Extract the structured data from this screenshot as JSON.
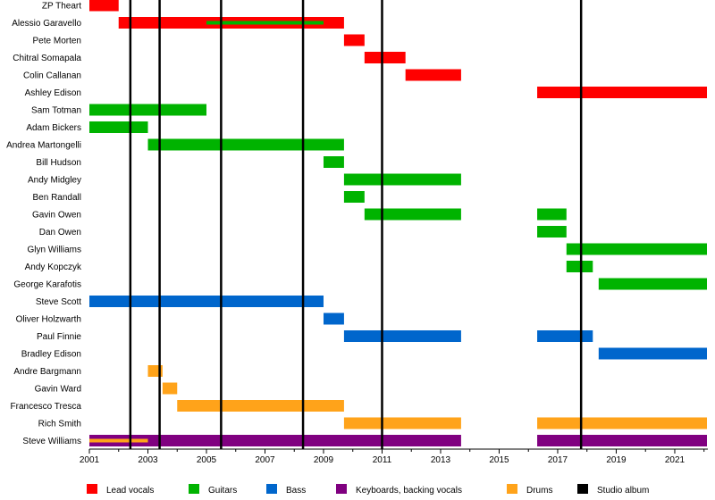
{
  "chart_data": {
    "type": "timeline",
    "x_range": [
      2001.0,
      2022.1
    ],
    "x_ticks": [
      2001,
      2003,
      2005,
      2007,
      2009,
      2011,
      2013,
      2015,
      2017,
      2019,
      2021
    ],
    "colors": {
      "lead_vocals": "#ff0000",
      "guitars": "#00b300",
      "bass": "#0066cc",
      "keyboards": "#800080",
      "drums": "#ffa31a",
      "studio_album": "#000000"
    },
    "members": [
      {
        "name": "ZP Theart",
        "bars": [
          {
            "role": "lead_vocals",
            "start": 2001.0,
            "end": 2002.0
          }
        ]
      },
      {
        "name": "Alessio Garavello",
        "bars": [
          {
            "role": "lead_vocals",
            "start": 2002.0,
            "end": 2009.7
          },
          {
            "role": "guitars",
            "start": 2005.0,
            "end": 2009.0,
            "thin": true
          }
        ]
      },
      {
        "name": "Pete Morten",
        "bars": [
          {
            "role": "lead_vocals",
            "start": 2009.7,
            "end": 2010.4
          }
        ]
      },
      {
        "name": "Chitral Somapala",
        "bars": [
          {
            "role": "lead_vocals",
            "start": 2010.4,
            "end": 2011.8
          }
        ]
      },
      {
        "name": "Colin Callanan",
        "bars": [
          {
            "role": "lead_vocals",
            "start": 2011.8,
            "end": 2013.7
          }
        ]
      },
      {
        "name": "Ashley Edison",
        "bars": [
          {
            "role": "lead_vocals",
            "start": 2016.3,
            "end": 2022.1
          }
        ]
      },
      {
        "name": "Sam Totman",
        "bars": [
          {
            "role": "guitars",
            "start": 2001.0,
            "end": 2005.0
          }
        ]
      },
      {
        "name": "Adam Bickers",
        "bars": [
          {
            "role": "guitars",
            "start": 2001.0,
            "end": 2003.0
          }
        ]
      },
      {
        "name": "Andrea Martongelli",
        "bars": [
          {
            "role": "guitars",
            "start": 2003.0,
            "end": 2009.7
          }
        ]
      },
      {
        "name": "Bill Hudson",
        "bars": [
          {
            "role": "guitars",
            "start": 2009.0,
            "end": 2009.7
          }
        ]
      },
      {
        "name": "Andy Midgley",
        "bars": [
          {
            "role": "guitars",
            "start": 2009.7,
            "end": 2013.7
          }
        ]
      },
      {
        "name": "Ben Randall",
        "bars": [
          {
            "role": "guitars",
            "start": 2009.7,
            "end": 2010.4
          }
        ]
      },
      {
        "name": "Gavin Owen",
        "bars": [
          {
            "role": "guitars",
            "start": 2010.4,
            "end": 2013.7
          },
          {
            "role": "guitars",
            "start": 2016.3,
            "end": 2017.3
          }
        ]
      },
      {
        "name": "Dan Owen",
        "bars": [
          {
            "role": "guitars",
            "start": 2016.3,
            "end": 2017.3
          }
        ]
      },
      {
        "name": "Glyn Williams",
        "bars": [
          {
            "role": "guitars",
            "start": 2017.3,
            "end": 2022.1
          }
        ]
      },
      {
        "name": "Andy Kopczyk",
        "bars": [
          {
            "role": "guitars",
            "start": 2017.3,
            "end": 2018.2
          }
        ]
      },
      {
        "name": "George Karafotis",
        "bars": [
          {
            "role": "guitars",
            "start": 2018.4,
            "end": 2022.1
          }
        ]
      },
      {
        "name": "Steve Scott",
        "bars": [
          {
            "role": "bass",
            "start": 2001.0,
            "end": 2009.0
          }
        ]
      },
      {
        "name": "Oliver Holzwarth",
        "bars": [
          {
            "role": "bass",
            "start": 2009.0,
            "end": 2009.7
          }
        ]
      },
      {
        "name": "Paul Finnie",
        "bars": [
          {
            "role": "bass",
            "start": 2009.7,
            "end": 2013.7
          },
          {
            "role": "bass",
            "start": 2016.3,
            "end": 2018.2
          }
        ]
      },
      {
        "name": "Bradley Edison",
        "bars": [
          {
            "role": "bass",
            "start": 2018.4,
            "end": 2022.1
          }
        ]
      },
      {
        "name": "Andre Bargmann",
        "bars": [
          {
            "role": "drums",
            "start": 2003.0,
            "end": 2003.5
          }
        ]
      },
      {
        "name": "Gavin Ward",
        "bars": [
          {
            "role": "drums",
            "start": 2003.5,
            "end": 2004.0
          }
        ]
      },
      {
        "name": "Francesco Tresca",
        "bars": [
          {
            "role": "drums",
            "start": 2004.0,
            "end": 2009.7
          }
        ]
      },
      {
        "name": "Rich Smith",
        "bars": [
          {
            "role": "drums",
            "start": 2009.7,
            "end": 2013.7
          },
          {
            "role": "drums",
            "start": 2016.3,
            "end": 2022.1
          }
        ]
      },
      {
        "name": "Steve Williams",
        "bars": [
          {
            "role": "keyboards",
            "start": 2001.0,
            "end": 2013.7
          },
          {
            "role": "keyboards",
            "start": 2016.3,
            "end": 2022.1
          },
          {
            "role": "drums",
            "start": 2001.0,
            "end": 2003.0,
            "thin": true
          }
        ]
      }
    ],
    "studio_albums": [
      2002.4,
      2003.4,
      2005.5,
      2008.3,
      2011.0,
      2017.8
    ],
    "legend": [
      {
        "role": "lead_vocals",
        "label": "Lead vocals"
      },
      {
        "role": "guitars",
        "label": "Guitars"
      },
      {
        "role": "bass",
        "label": "Bass"
      },
      {
        "role": "keyboards",
        "label": "Keyboards, backing vocals"
      },
      {
        "role": "drums",
        "label": "Drums"
      },
      {
        "role": "studio_album",
        "label": "Studio album"
      }
    ]
  }
}
